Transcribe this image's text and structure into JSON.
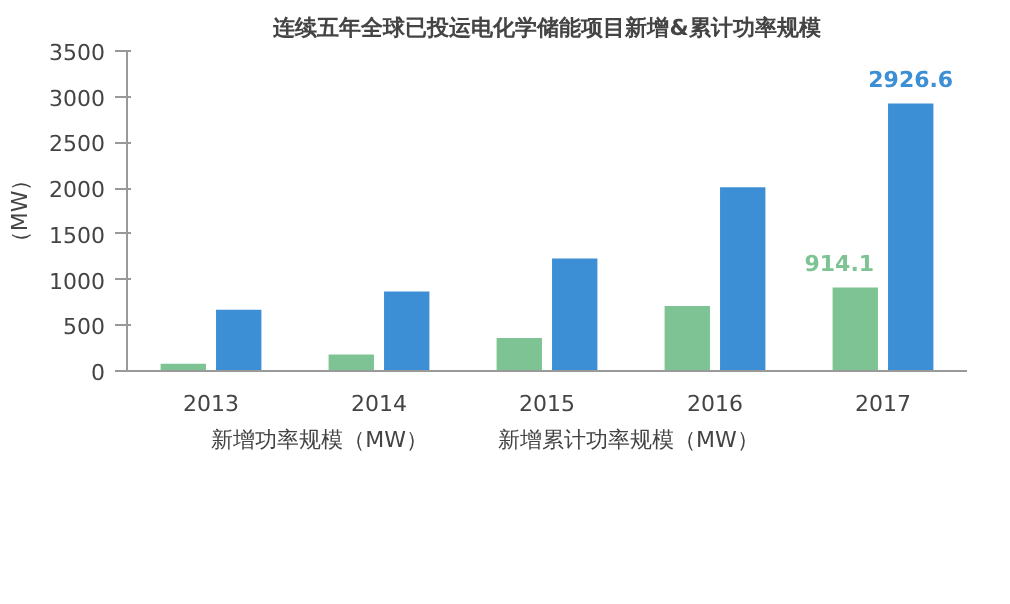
{
  "chart_data": {
    "type": "bar",
    "title": "连续五年全球已投运电化学储能项目新增&累计功率规模",
    "ylabel": "（MW）",
    "categories": [
      "2013",
      "2014",
      "2015",
      "2016",
      "2017"
    ],
    "series": [
      {
        "name": "新增功率规模（MW）",
        "color": "#7dc394",
        "values": [
          80,
          180,
          360,
          710,
          914.1
        ],
        "value_labels": [
          null,
          null,
          null,
          null,
          "914.1"
        ]
      },
      {
        "name": "新增累计功率规模（MW）",
        "color": "#3c8fd5",
        "values": [
          670,
          870,
          1230,
          2010,
          2926.6
        ],
        "value_labels": [
          null,
          null,
          null,
          null,
          "2926.6"
        ]
      }
    ],
    "ylim": [
      0,
      3500
    ],
    "yticks": [
      0,
      500,
      1000,
      1500,
      2000,
      2500,
      3000,
      3500
    ],
    "grid": false,
    "legend": "bottom"
  }
}
